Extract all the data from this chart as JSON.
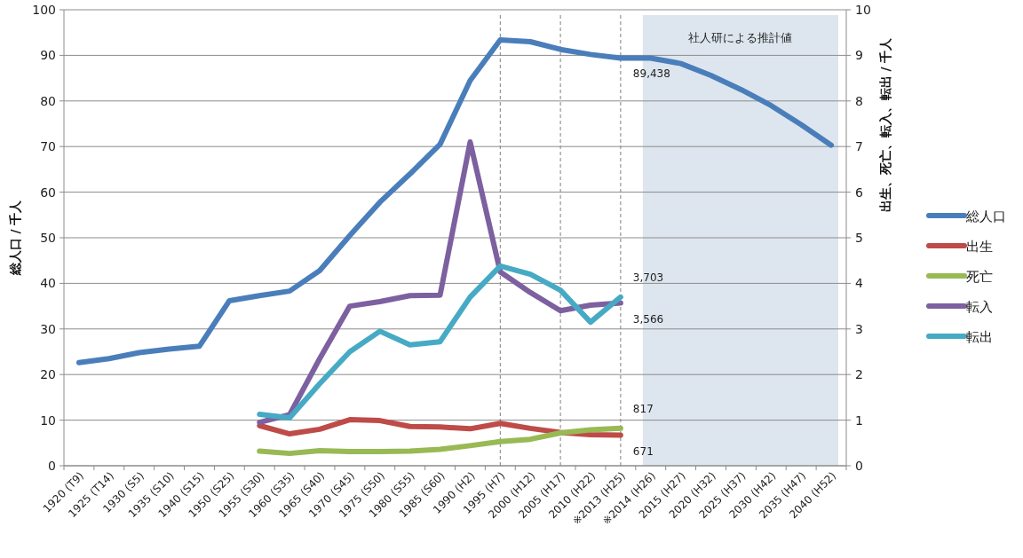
{
  "chart_data": {
    "type": "line",
    "ylabel": "総人口 / 千人",
    "y2label": "出生、死亡、転入、転出 / 千人",
    "categories": [
      "1920 (T9)",
      "1925 (T14)",
      "1930 (S5)",
      "1935 (S10)",
      "1940 (S15)",
      "1950 (S25)",
      "1955 (S30)",
      "1960 (S35)",
      "1965 (S40)",
      "1970 (S45)",
      "1975 (S50)",
      "1980 (S55)",
      "1985 (S60)",
      "1990 (H2)",
      "1995 (H7)",
      "2000 (H12)",
      "2005 (H17)",
      "2010 (H22)",
      "※2013 (H25)",
      "※2014 (H26)",
      "2015 (H27)",
      "2020 (H32)",
      "2025 (H37)",
      "2030 (H42)",
      "2035 (H47)",
      "2040 (H52)"
    ],
    "series": [
      {
        "name": "総人口",
        "color": "#4a7ebb",
        "values": [
          22.6,
          23.5,
          24.8,
          25.6,
          26.2,
          36.2,
          37.3,
          38.3,
          42.8,
          50.5,
          57.8,
          64,
          70.5,
          84.5,
          93.4,
          93.0,
          91.3,
          90.2,
          89.4,
          89.4,
          88.2,
          85.6,
          82.5,
          79,
          74.8,
          70.3
        ]
      },
      {
        "name": "出生",
        "color": "#be4b48",
        "axis": "y2",
        "values": [
          null,
          null,
          null,
          null,
          null,
          null,
          0.88,
          0.7,
          0.8,
          1.01,
          0.99,
          0.86,
          0.85,
          0.81,
          0.93,
          0.82,
          0.73,
          0.68,
          0.67,
          null,
          null,
          null,
          null,
          null,
          null,
          null
        ]
      },
      {
        "name": "死亡",
        "color": "#98b954",
        "axis": "y2",
        "values": [
          null,
          null,
          null,
          null,
          null,
          null,
          0.32,
          0.27,
          0.33,
          0.31,
          0.31,
          0.32,
          0.36,
          0.44,
          0.53,
          0.58,
          0.72,
          0.79,
          0.82,
          null,
          null,
          null,
          null,
          null,
          null,
          null
        ]
      },
      {
        "name": "転入",
        "color": "#7d60a0",
        "axis": "y2",
        "values": [
          null,
          null,
          null,
          null,
          null,
          null,
          0.95,
          1.12,
          2.35,
          3.5,
          3.6,
          3.73,
          3.74,
          7.1,
          4.25,
          3.8,
          3.4,
          3.52,
          3.57,
          null,
          null,
          null,
          null,
          null,
          null,
          null
        ]
      },
      {
        "name": "転出",
        "color": "#46aac5",
        "axis": "y2",
        "values": [
          null,
          null,
          null,
          null,
          null,
          null,
          1.13,
          1.05,
          1.8,
          2.5,
          2.95,
          2.65,
          2.72,
          3.7,
          4.38,
          4.2,
          3.85,
          3.15,
          3.7,
          null,
          null,
          null,
          null,
          null,
          null,
          null
        ]
      }
    ],
    "annotations": [
      {
        "text": "89,438",
        "x": "※2013 (H25)",
        "y": 89.4
      },
      {
        "text": "3,703",
        "x": "※2013 (H25)",
        "y": 37
      },
      {
        "text": "3,566",
        "x": "※2013 (H25)",
        "y": 35.7
      },
      {
        "text": "817",
        "x": "※2013 (H25)",
        "y": 8.2
      },
      {
        "text": "671",
        "x": "※2013 (H25)",
        "y": 6.7
      }
    ],
    "ylim": [
      0,
      100
    ],
    "yticks": [
      0,
      10,
      20,
      30,
      40,
      50,
      60,
      70,
      80,
      90,
      100
    ],
    "y2lim": [
      0,
      10
    ],
    "y2ticks": [
      0,
      1,
      2,
      3,
      4,
      5,
      6,
      7,
      8,
      9,
      10
    ],
    "ref_lines": [
      {
        "axis": "x",
        "value": "1995 (H7)",
        "line_style": "dashed",
        "color": "#808080"
      },
      {
        "axis": "x",
        "value": "2005 (H17)",
        "line_style": "dashed",
        "color": "#808080"
      },
      {
        "axis": "x",
        "value": "※2013 (H25)",
        "line_style": "dashed",
        "color": "#808080"
      }
    ],
    "bands": [
      {
        "axis": "x",
        "from": "※2014 (H26)",
        "to": "2040 (H52)",
        "label": "社人研による推計値",
        "color": "#dde6ee"
      }
    ],
    "grid": "y",
    "legend": "right",
    "marker": "none",
    "line_style": "solid"
  }
}
